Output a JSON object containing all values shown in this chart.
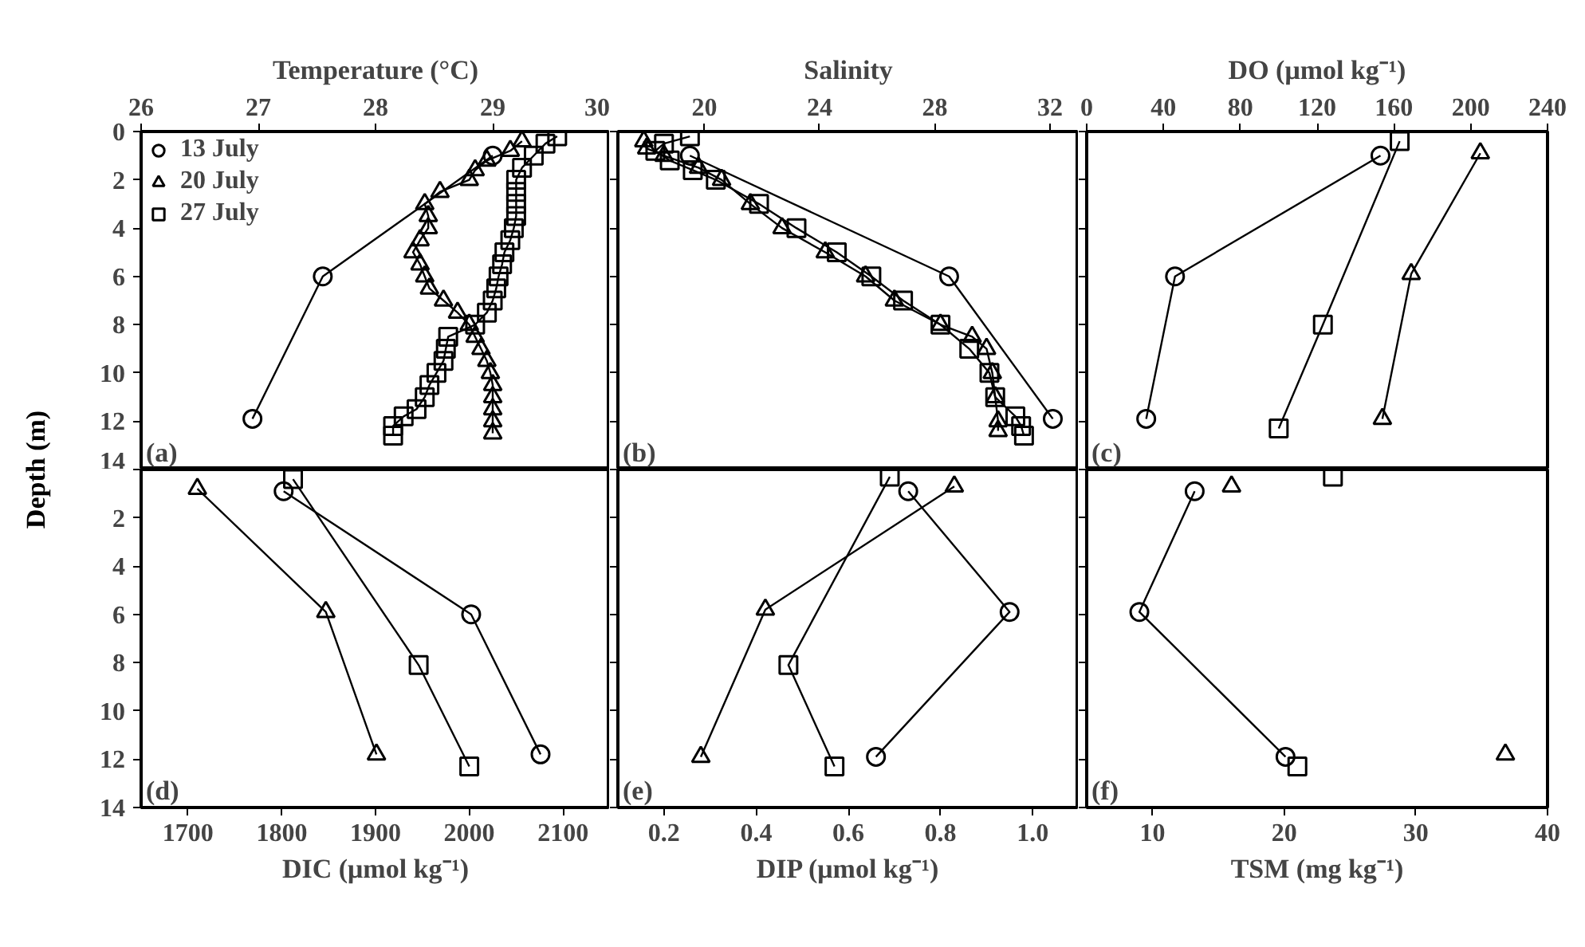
{
  "chart_data": [
    {
      "type": "line",
      "xlabel": "Temperature (°C)",
      "ylabel": "Depth (m)",
      "xlim": [
        26,
        30
      ],
      "xticks": [
        26,
        27,
        28,
        29,
        30
      ],
      "ylim": [
        14,
        0
      ],
      "yticks": [
        0,
        2,
        4,
        6,
        8,
        10,
        12,
        14
      ],
      "legend": "top left",
      "annotations": [
        "(a)"
      ],
      "series": [
        {
          "name": "13 July",
          "color": "#000000",
          "marker": "circle",
          "x": [
            29.0,
            27.55,
            26.95
          ],
          "values": [
            1.0,
            6.0,
            11.9
          ]
        },
        {
          "name": "20 July",
          "color": "#000000",
          "marker": "triangle",
          "x": [
            29.25,
            29.15,
            28.95,
            28.85,
            28.8,
            28.55,
            28.42,
            28.45,
            28.45,
            28.38,
            28.32,
            28.38,
            28.42,
            28.46,
            28.58,
            28.7,
            28.8,
            28.85,
            28.9,
            28.95,
            28.98,
            29.0,
            29.0,
            29.0,
            29.0,
            29.0
          ],
          "values": [
            0.4,
            0.8,
            1.2,
            1.6,
            2.0,
            2.5,
            3.0,
            3.5,
            4.0,
            4.5,
            5.0,
            5.5,
            6.0,
            6.5,
            7.0,
            7.5,
            8.0,
            8.5,
            9.0,
            9.5,
            10.0,
            10.5,
            11.0,
            11.5,
            12.0,
            12.5
          ]
        },
        {
          "name": "27 July",
          "color": "#000000",
          "marker": "square",
          "x": [
            29.55,
            29.45,
            29.35,
            29.25,
            29.2,
            29.2,
            29.2,
            29.2,
            29.18,
            29.15,
            29.1,
            29.08,
            29.05,
            29.03,
            29.0,
            28.95,
            28.85,
            28.62,
            28.6,
            28.58,
            28.52,
            28.46,
            28.42,
            28.35,
            28.24,
            28.15,
            28.15
          ],
          "values": [
            0.2,
            0.5,
            1.0,
            1.5,
            2.0,
            2.5,
            3.0,
            3.5,
            4.0,
            4.5,
            5.0,
            5.5,
            6.0,
            6.5,
            7.0,
            7.5,
            8.0,
            8.5,
            9.0,
            9.5,
            10.0,
            10.5,
            11.0,
            11.5,
            11.8,
            12.2,
            12.6
          ]
        }
      ]
    },
    {
      "type": "line",
      "xlabel": "Salinity",
      "xlim": [
        17,
        33
      ],
      "xticks": [
        20,
        24,
        28,
        32
      ],
      "ylim": [
        14,
        0
      ],
      "yticks": [
        0,
        2,
        4,
        6,
        8,
        10,
        12,
        14
      ],
      "tick_labels": "x",
      "annotations": [
        "(b)"
      ],
      "series": [
        {
          "color": "#000000",
          "marker": "circle",
          "x": [
            19.5,
            28.5,
            32.1
          ],
          "values": [
            1.0,
            6.0,
            11.9
          ]
        },
        {
          "color": "#000000",
          "marker": "triangle",
          "x": [
            17.9,
            18.0,
            18.6,
            19.8,
            20.6,
            21.6,
            22.7,
            24.2,
            25.6,
            26.6,
            28.2,
            29.3,
            29.8,
            30.0,
            30.1,
            30.2,
            30.2
          ],
          "values": [
            0.4,
            0.7,
            1.0,
            1.5,
            2.0,
            3.0,
            4.0,
            5.0,
            6.0,
            7.0,
            8.0,
            8.5,
            9.0,
            10.0,
            11.0,
            12.0,
            12.4
          ]
        },
        {
          "color": "#000000",
          "marker": "square",
          "x": [
            19.5,
            18.6,
            18.3,
            18.8,
            19.6,
            20.4,
            21.9,
            23.2,
            24.6,
            25.8,
            26.9,
            28.2,
            29.2,
            29.9,
            30.1,
            30.8,
            31.0,
            31.1
          ],
          "values": [
            0.2,
            0.5,
            0.8,
            1.2,
            1.6,
            2.0,
            3.0,
            4.0,
            5.0,
            6.0,
            7.0,
            8.0,
            9.0,
            10.0,
            11.0,
            11.8,
            12.2,
            12.6
          ]
        }
      ]
    },
    {
      "type": "line",
      "xlabel": "DO (μmol kg⁻¹)",
      "xlim": [
        0,
        240
      ],
      "xticks": [
        0,
        40,
        80,
        120,
        160,
        200,
        240
      ],
      "ylim": [
        14,
        0
      ],
      "yticks": [
        0,
        2,
        4,
        6,
        8,
        10,
        12,
        14
      ],
      "tick_labels": "x",
      "annotations": [
        "(c)"
      ],
      "series": [
        {
          "color": "#000000",
          "marker": "circle",
          "x": [
            153,
            46,
            31
          ],
          "values": [
            1.0,
            6.0,
            11.9
          ]
        },
        {
          "color": "#000000",
          "marker": "triangle",
          "x": [
            205,
            169,
            154
          ],
          "values": [
            0.9,
            5.9,
            11.9
          ]
        },
        {
          "color": "#000000",
          "marker": "square",
          "x": [
            163,
            123,
            100
          ],
          "values": [
            0.4,
            8.0,
            12.3
          ]
        }
      ]
    },
    {
      "type": "line",
      "xlabel": "DIC (μmol kg⁻¹)",
      "xlim": [
        1650,
        2150
      ],
      "xticks": [
        1700,
        1800,
        1900,
        2000,
        2100
      ],
      "ylim": [
        14,
        0
      ],
      "yticks": [
        {
          "value": 0,
          "label": null
        },
        2,
        4,
        6,
        8,
        10,
        12,
        14
      ],
      "annotations": [
        "(d)"
      ],
      "series": [
        {
          "color": "#000000",
          "marker": "circle",
          "x": [
            1802,
            2002,
            2076
          ],
          "values": [
            0.9,
            6.0,
            11.8
          ]
        },
        {
          "color": "#000000",
          "marker": "triangle",
          "x": [
            1710,
            1847,
            1901
          ],
          "values": [
            0.8,
            5.9,
            11.8
          ]
        },
        {
          "color": "#000000",
          "marker": "square",
          "x": [
            1812,
            1946,
            2000
          ],
          "values": [
            0.4,
            8.1,
            12.3
          ]
        }
      ]
    },
    {
      "type": "line",
      "xlabel": "DIP (μmol kg⁻¹)",
      "xlim": [
        0.1,
        1.1
      ],
      "xticks": [
        0.2,
        0.4,
        0.6,
        0.8,
        {
          "value": 1.0,
          "label": "1.0"
        }
      ],
      "ylim": [
        14,
        0
      ],
      "yticks": [
        0,
        2,
        4,
        6,
        8,
        10,
        12,
        14
      ],
      "tick_labels": "x",
      "annotations": [
        "(e)"
      ],
      "series": [
        {
          "color": "#000000",
          "marker": "circle",
          "x": [
            0.73,
            0.95,
            0.66
          ],
          "values": [
            0.9,
            5.9,
            11.9
          ]
        },
        {
          "color": "#000000",
          "marker": "triangle",
          "x": [
            0.83,
            0.42,
            0.28
          ],
          "values": [
            0.7,
            5.8,
            11.9
          ]
        },
        {
          "color": "#000000",
          "marker": "square",
          "x": [
            0.69,
            0.47,
            0.57
          ],
          "values": [
            0.3,
            8.1,
            12.3
          ]
        }
      ]
    },
    {
      "type": "line",
      "xlabel": "TSM (mg kg⁻¹)",
      "xlim": [
        5,
        40
      ],
      "xticks": [
        10,
        20,
        30,
        40
      ],
      "ylim": [
        14,
        0
      ],
      "yticks": [
        0,
        2,
        4,
        6,
        8,
        10,
        12,
        14
      ],
      "tick_labels": "x",
      "annotations": [
        "(f)"
      ],
      "series": [
        {
          "color": "#000000",
          "marker": "circle",
          "x": [
            13.2,
            9.0,
            20.1
          ],
          "values": [
            0.9,
            5.9,
            11.9
          ]
        },
        {
          "type": "scatter",
          "color": "#000000",
          "marker": "triangle",
          "x": [
            16.0,
            36.8
          ],
          "values": [
            0.7,
            11.8
          ]
        },
        {
          "type": "scatter",
          "color": "#000000",
          "marker": "square",
          "x": [
            23.7,
            21.0
          ],
          "values": [
            0.3,
            12.3
          ]
        }
      ]
    }
  ]
}
